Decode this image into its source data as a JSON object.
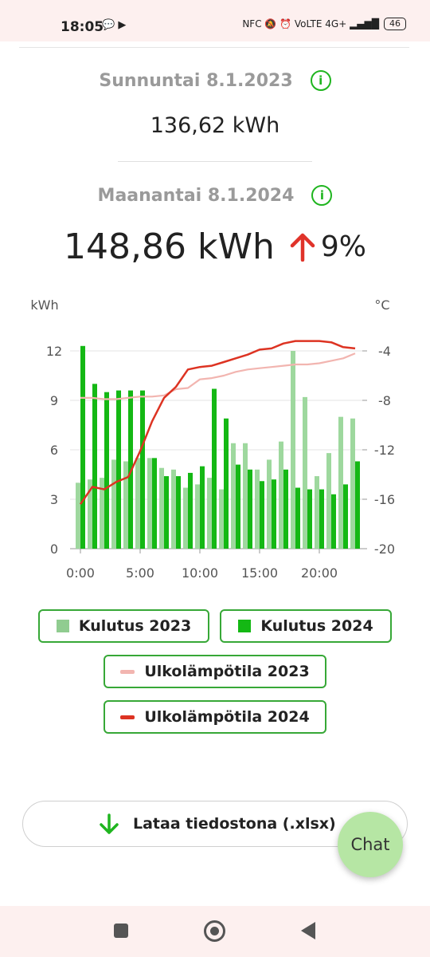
{
  "status": {
    "time": "18:05",
    "left_icons": "💬 ▶",
    "right_icons": "NFC 🔕 ⏰ VoLTE 4G+ ▂▄▆█",
    "battery": "46"
  },
  "comparison": {
    "previous_date": "Sunnuntai 8.1.2023",
    "previous_kwh": "136,62 kWh",
    "current_date": "Maanantai 8.1.2024",
    "current_kwh": "148,86 kWh",
    "change_pct": "9%",
    "info_icon": "i"
  },
  "chart_data": {
    "type": "bar",
    "ylabel": "kWh",
    "y2label": "°C",
    "ylim": [
      0,
      12
    ],
    "y_ticks": [
      "0",
      "3",
      "6",
      "9",
      "12"
    ],
    "y2lim": [
      -20,
      -4
    ],
    "y2_ticks": [
      "-20",
      "-16",
      "-12",
      "-8",
      "-4"
    ],
    "x_ticks": [
      "0:00",
      "5:00",
      "10:00",
      "15:00",
      "20:00"
    ],
    "x": [
      0,
      1,
      2,
      3,
      4,
      5,
      6,
      7,
      8,
      9,
      10,
      11,
      12,
      13,
      14,
      15,
      16,
      17,
      18,
      19,
      20,
      21,
      22,
      23
    ],
    "series": [
      {
        "name": "Kulutus 2023",
        "kind": "bar",
        "color": "#9ed89e",
        "values": [
          4.0,
          4.2,
          4.3,
          5.4,
          5.3,
          5.5,
          5.5,
          4.9,
          4.8,
          3.7,
          3.9,
          4.3,
          3.6,
          6.4,
          6.4,
          4.8,
          5.4,
          6.5,
          12.0,
          9.2,
          4.4,
          5.8,
          8.0,
          7.9
        ]
      },
      {
        "name": "Kulutus 2024",
        "kind": "bar",
        "color": "#14b814",
        "values": [
          12.3,
          10.0,
          9.5,
          9.6,
          9.6,
          9.6,
          5.5,
          4.4,
          4.4,
          4.6,
          5.0,
          9.7,
          7.9,
          5.1,
          4.8,
          4.1,
          4.2,
          4.8,
          3.7,
          3.6,
          3.6,
          3.3,
          3.9,
          5.3
        ]
      },
      {
        "name": "Ulkolämpötila 2023",
        "kind": "line",
        "color": "#f2b5b0",
        "values": [
          -7.8,
          -7.8,
          -7.9,
          -7.9,
          -7.8,
          -7.7,
          -7.7,
          -7.6,
          -7.1,
          -7.0,
          -6.3,
          -6.2,
          -6.0,
          -5.7,
          -5.5,
          -5.4,
          -5.3,
          -5.2,
          -5.1,
          -5.1,
          -5.0,
          -4.8,
          -4.6,
          -4.2
        ]
      },
      {
        "name": "Ulkolämpötila 2024",
        "kind": "line",
        "color": "#dd3322",
        "values": [
          -16.4,
          -15.0,
          -15.2,
          -14.6,
          -14.2,
          -12.1,
          -9.7,
          -7.8,
          -6.9,
          -5.5,
          -5.3,
          -5.2,
          -4.9,
          -4.6,
          -4.3,
          -3.9,
          -3.8,
          -3.4,
          -3.2,
          -3.2,
          -3.2,
          -3.3,
          -3.7,
          -3.8
        ]
      }
    ]
  },
  "legend": {
    "cons_2023": "Kulutus 2023",
    "cons_2024": "Kulutus 2024",
    "temp_2023": "Ulkolämpötila 2023",
    "temp_2024": "Ulkolämpötila 2024"
  },
  "actions": {
    "download_label": "Lataa tiedostona (.xlsx)",
    "chat_label": "Chat"
  },
  "colors": {
    "accent_green": "#1fb51f",
    "increase_red": "#e0332a"
  }
}
